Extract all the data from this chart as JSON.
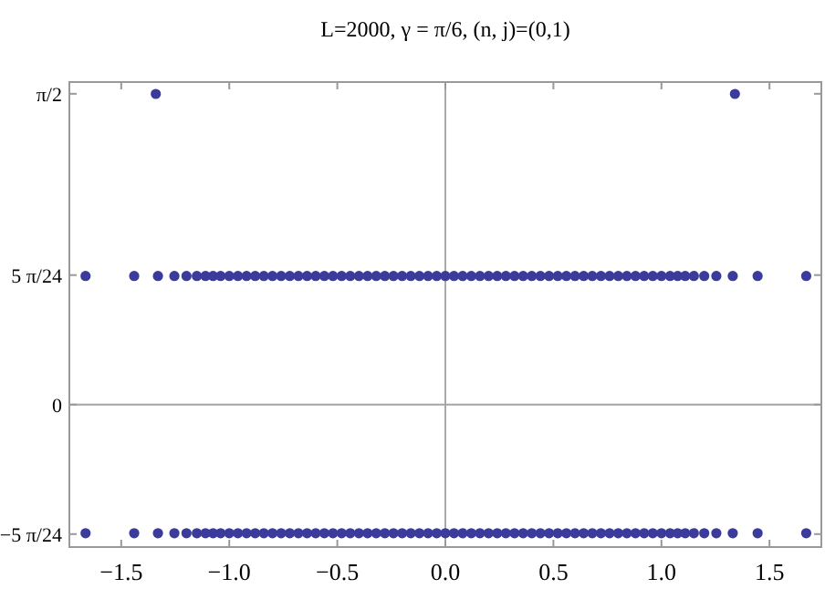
{
  "chart_data": {
    "type": "scatter",
    "title": "L=2000, γ = π/6, (n, j)=(0,1)",
    "xlim": [
      -1.74,
      1.74
    ],
    "ylim": [
      -0.72,
      1.63
    ],
    "xticks": [
      {
        "value": -1.5,
        "label": "−1.5"
      },
      {
        "value": -1,
        "label": "−1.0"
      },
      {
        "value": -0.5,
        "label": "−0.5"
      },
      {
        "value": 0,
        "label": "0.0"
      },
      {
        "value": 0.5,
        "label": "0.5"
      },
      {
        "value": 1,
        "label": "1.0"
      },
      {
        "value": 1.5,
        "label": "1.5"
      }
    ],
    "yticks": [
      {
        "value": -0.6545,
        "label": "−5 π/24"
      },
      {
        "value": 0,
        "label": "0"
      },
      {
        "value": 0.6545,
        "label": "5 π/24"
      },
      {
        "value": 1.5708,
        "label": "π/2"
      }
    ],
    "grid": false,
    "marker": "circle",
    "ref_lines": [
      {
        "axis": "x",
        "value": 0,
        "color": "#aaaaaa"
      },
      {
        "axis": "y",
        "value": 0,
        "color": "#a4a4a4"
      }
    ],
    "series": [
      {
        "color": "#3b3b9c",
        "x": [
          -1.665,
          -1.44,
          -1.33,
          -1.254,
          -1.198,
          -1.15,
          -1.11,
          -1.075,
          -1.04,
          -1,
          -0.96,
          -0.92,
          -0.88,
          -0.84,
          -0.8,
          -0.76,
          -0.72,
          -0.68,
          -0.64,
          -0.6,
          -0.56,
          -0.52,
          -0.48,
          -0.44,
          -0.4,
          -0.36,
          -0.32,
          -0.28,
          -0.24,
          -0.2,
          -0.16,
          -0.12,
          -0.08,
          -0.04,
          0,
          0.04,
          0.08,
          0.12,
          0.16,
          0.2,
          0.24,
          0.28,
          0.32,
          0.36,
          0.4,
          0.44,
          0.48,
          0.52,
          0.56,
          0.6,
          0.64,
          0.68,
          0.72,
          0.76,
          0.8,
          0.84,
          0.88,
          0.92,
          0.96,
          1,
          1.04,
          1.075,
          1.11,
          1.15,
          1.198,
          1.254,
          1.33,
          1.445,
          1.67
        ],
        "values": [
          0.65,
          0.65,
          0.65,
          0.65,
          0.65,
          0.65,
          0.65,
          0.65,
          0.65,
          0.65,
          0.65,
          0.65,
          0.65,
          0.65,
          0.65,
          0.65,
          0.65,
          0.65,
          0.65,
          0.65,
          0.65,
          0.65,
          0.65,
          0.65,
          0.65,
          0.65,
          0.65,
          0.65,
          0.65,
          0.65,
          0.65,
          0.65,
          0.65,
          0.65,
          0.65,
          0.65,
          0.65,
          0.65,
          0.65,
          0.65,
          0.65,
          0.65,
          0.65,
          0.65,
          0.65,
          0.65,
          0.65,
          0.65,
          0.65,
          0.65,
          0.65,
          0.65,
          0.65,
          0.65,
          0.65,
          0.65,
          0.65,
          0.65,
          0.65,
          0.65,
          0.65,
          0.65,
          0.65,
          0.65,
          0.65,
          0.65,
          0.65,
          0.65,
          0.65
        ]
      },
      {
        "color": "#3b3b9c",
        "x": [
          -1.665,
          -1.44,
          -1.33,
          -1.254,
          -1.198,
          -1.15,
          -1.11,
          -1.075,
          -1.04,
          -1,
          -0.96,
          -0.92,
          -0.88,
          -0.84,
          -0.8,
          -0.76,
          -0.72,
          -0.68,
          -0.64,
          -0.6,
          -0.56,
          -0.52,
          -0.48,
          -0.44,
          -0.4,
          -0.36,
          -0.32,
          -0.28,
          -0.24,
          -0.2,
          -0.16,
          -0.12,
          -0.08,
          -0.04,
          0,
          0.04,
          0.08,
          0.12,
          0.16,
          0.2,
          0.24,
          0.28,
          0.32,
          0.36,
          0.4,
          0.44,
          0.48,
          0.52,
          0.56,
          0.6,
          0.64,
          0.68,
          0.72,
          0.76,
          0.8,
          0.84,
          0.88,
          0.92,
          0.96,
          1,
          1.04,
          1.075,
          1.11,
          1.15,
          1.198,
          1.254,
          1.33,
          1.445,
          1.67
        ],
        "values": [
          -0.65,
          -0.65,
          -0.65,
          -0.65,
          -0.65,
          -0.65,
          -0.65,
          -0.65,
          -0.65,
          -0.65,
          -0.65,
          -0.65,
          -0.65,
          -0.65,
          -0.65,
          -0.65,
          -0.65,
          -0.65,
          -0.65,
          -0.65,
          -0.65,
          -0.65,
          -0.65,
          -0.65,
          -0.65,
          -0.65,
          -0.65,
          -0.65,
          -0.65,
          -0.65,
          -0.65,
          -0.65,
          -0.65,
          -0.65,
          -0.65,
          -0.65,
          -0.65,
          -0.65,
          -0.65,
          -0.65,
          -0.65,
          -0.65,
          -0.65,
          -0.65,
          -0.65,
          -0.65,
          -0.65,
          -0.65,
          -0.65,
          -0.65,
          -0.65,
          -0.65,
          -0.65,
          -0.65,
          -0.65,
          -0.65,
          -0.65,
          -0.65,
          -0.65,
          -0.65,
          -0.65,
          -0.65,
          -0.65,
          -0.65,
          -0.65,
          -0.65,
          -0.65,
          -0.65,
          -0.65
        ]
      },
      {
        "color": "#3b3b9c",
        "x": [
          -1.34,
          1.34
        ],
        "values": [
          1.57,
          1.57
        ]
      }
    ]
  }
}
